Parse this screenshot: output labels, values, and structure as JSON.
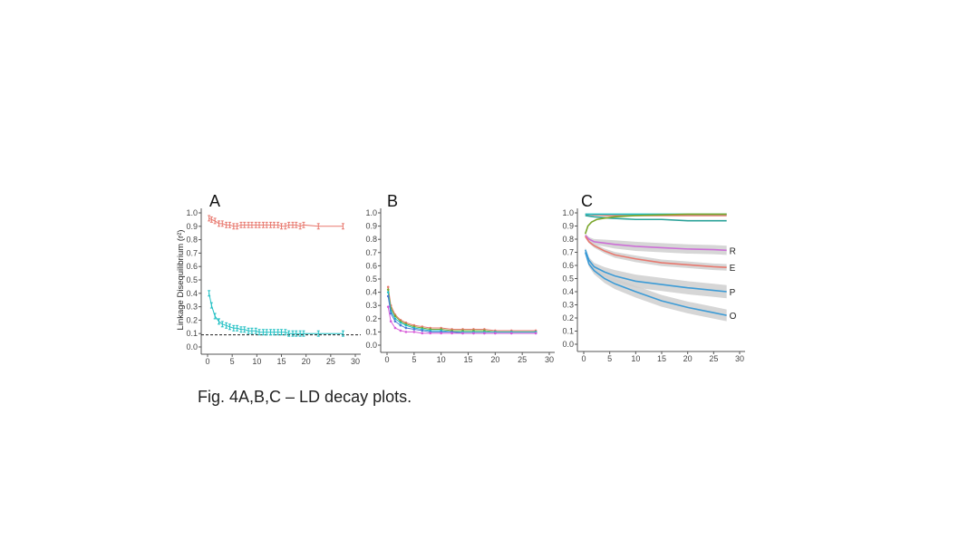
{
  "caption": "Fig. 4A,B,C – LD decay plots.",
  "chart_data": [
    {
      "panel": "A",
      "type": "line",
      "ylabel": "Linkage Disequilibrium (r²)",
      "xlim": [
        0,
        30
      ],
      "ylim": [
        0,
        1.0
      ],
      "xticks": [
        0,
        5,
        10,
        15,
        20,
        25,
        30
      ],
      "yticks": [
        0.0,
        0.1,
        0.2,
        0.3,
        0.4,
        0.5,
        0.6,
        0.7,
        0.8,
        0.9,
        1.0
      ],
      "reference_line": {
        "y": 0.09,
        "style": "dashed"
      },
      "error_bars": true,
      "series": [
        {
          "color": "#e8796f",
          "x": [
            0.3,
            0.8,
            1.5,
            2.3,
            3.0,
            3.8,
            4.5,
            5.3,
            6.0,
            6.8,
            7.5,
            8.3,
            9.0,
            9.8,
            10.5,
            11.3,
            12.0,
            12.8,
            13.5,
            14.3,
            15.0,
            15.8,
            16.5,
            17.3,
            18.0,
            18.8,
            19.5,
            22.5,
            27.5
          ],
          "y": [
            0.96,
            0.95,
            0.94,
            0.92,
            0.92,
            0.91,
            0.91,
            0.9,
            0.9,
            0.91,
            0.91,
            0.91,
            0.91,
            0.91,
            0.91,
            0.91,
            0.91,
            0.91,
            0.91,
            0.91,
            0.9,
            0.9,
            0.91,
            0.91,
            0.91,
            0.9,
            0.91,
            0.9,
            0.9
          ]
        },
        {
          "color": "#1fbfc3",
          "x": [
            0.3,
            0.8,
            1.5,
            2.3,
            3.0,
            3.8,
            4.5,
            5.3,
            6.0,
            6.8,
            7.5,
            8.3,
            9.0,
            9.8,
            10.5,
            11.3,
            12.0,
            12.8,
            13.5,
            14.3,
            15.0,
            15.8,
            16.5,
            17.3,
            18.0,
            18.8,
            19.5,
            22.5,
            27.5
          ],
          "y": [
            0.4,
            0.31,
            0.23,
            0.19,
            0.17,
            0.16,
            0.15,
            0.14,
            0.14,
            0.13,
            0.13,
            0.12,
            0.12,
            0.12,
            0.11,
            0.11,
            0.11,
            0.11,
            0.11,
            0.11,
            0.11,
            0.11,
            0.1,
            0.1,
            0.1,
            0.1,
            0.1,
            0.1,
            0.1
          ]
        }
      ]
    },
    {
      "panel": "B",
      "type": "line",
      "xlim": [
        0,
        30
      ],
      "ylim": [
        0,
        1.0
      ],
      "xticks": [
        0,
        5,
        10,
        15,
        20,
        25,
        30
      ],
      "yticks": [
        0.0,
        0.1,
        0.2,
        0.3,
        0.4,
        0.5,
        0.6,
        0.7,
        0.8,
        0.9,
        1.0
      ],
      "series": [
        {
          "color": "#e8796f",
          "x": [
            0.2,
            0.7,
            1.5,
            2.5,
            3.5,
            5.0,
            6.5,
            8.0,
            10.0,
            12.0,
            14.0,
            16.0,
            18.0,
            20.0,
            23.0,
            27.5
          ],
          "y": [
            0.44,
            0.3,
            0.23,
            0.19,
            0.17,
            0.15,
            0.14,
            0.13,
            0.13,
            0.12,
            0.12,
            0.12,
            0.12,
            0.11,
            0.11,
            0.11
          ]
        },
        {
          "color": "#7aa62c",
          "x": [
            0.2,
            0.7,
            1.5,
            2.5,
            3.5,
            5.0,
            6.5,
            8.0,
            10.0,
            12.0,
            14.0,
            16.0,
            18.0,
            20.0,
            23.0,
            27.5
          ],
          "y": [
            0.42,
            0.28,
            0.22,
            0.18,
            0.16,
            0.14,
            0.13,
            0.12,
            0.12,
            0.11,
            0.11,
            0.11,
            0.11,
            0.1,
            0.1,
            0.1
          ]
        },
        {
          "color": "#1fbfc3",
          "x": [
            0.2,
            0.7,
            1.5,
            2.5,
            3.5,
            5.0,
            6.5,
            8.0,
            10.0,
            12.0,
            14.0,
            16.0,
            18.0,
            20.0,
            23.0,
            27.5
          ],
          "y": [
            0.4,
            0.26,
            0.2,
            0.17,
            0.15,
            0.13,
            0.12,
            0.11,
            0.11,
            0.1,
            0.1,
            0.1,
            0.1,
            0.1,
            0.1,
            0.1
          ]
        },
        {
          "color": "#4a78d6",
          "x": [
            0.2,
            0.7,
            1.5,
            2.5,
            3.5,
            5.0,
            6.5,
            8.0,
            10.0,
            12.0,
            14.0,
            16.0,
            18.0,
            20.0,
            23.0,
            27.5
          ],
          "y": [
            0.37,
            0.24,
            0.18,
            0.15,
            0.13,
            0.12,
            0.11,
            0.1,
            0.1,
            0.1,
            0.09,
            0.09,
            0.09,
            0.09,
            0.09,
            0.09
          ]
        },
        {
          "color": "#d85ad8",
          "x": [
            0.2,
            0.7,
            1.5,
            2.5,
            3.5,
            5.0,
            6.5,
            8.0,
            10.0,
            12.0,
            14.0,
            16.0,
            18.0,
            20.0,
            23.0,
            27.5
          ],
          "y": [
            0.29,
            0.18,
            0.13,
            0.11,
            0.1,
            0.1,
            0.09,
            0.09,
            0.09,
            0.09,
            0.09,
            0.09,
            0.09,
            0.09,
            0.09,
            0.09
          ]
        }
      ]
    },
    {
      "panel": "C",
      "type": "line",
      "xlim": [
        0,
        30
      ],
      "ylim": [
        0,
        1.0
      ],
      "xticks": [
        0,
        5,
        10,
        15,
        20,
        25,
        30
      ],
      "yticks": [
        0.0,
        0.1,
        0.2,
        0.3,
        0.4,
        0.5,
        0.6,
        0.7,
        0.8,
        0.9,
        1.0
      ],
      "confidence_band": true,
      "series": [
        {
          "color": "#e8796f",
          "x": [
            0.3,
            2,
            5,
            10,
            15,
            20,
            25,
            27.5
          ],
          "y": [
            0.99,
            0.985,
            0.98,
            0.98,
            0.98,
            0.98,
            0.98,
            0.98
          ]
        },
        {
          "color": "#1fbfc3",
          "x": [
            0.3,
            2,
            5,
            10,
            15,
            20,
            25,
            27.5
          ],
          "y": [
            0.99,
            0.99,
            0.99,
            0.99,
            0.99,
            0.99,
            0.99,
            0.99
          ]
        },
        {
          "color": "#2aa198",
          "x": [
            0.3,
            2,
            5,
            10,
            15,
            20,
            25,
            27.5
          ],
          "y": [
            0.98,
            0.97,
            0.96,
            0.95,
            0.95,
            0.94,
            0.94,
            0.94
          ]
        },
        {
          "color": "#7aa62c",
          "x": [
            0.3,
            0.8,
            1.5,
            2.5,
            4,
            6,
            10,
            15,
            20,
            25,
            27.5
          ],
          "y": [
            0.84,
            0.9,
            0.93,
            0.95,
            0.96,
            0.97,
            0.98,
            0.985,
            0.99,
            0.99,
            0.99
          ]
        },
        {
          "label": "R",
          "color": "#cc6fd6",
          "band": 0.035,
          "x": [
            0.3,
            1,
            2,
            4,
            6,
            10,
            15,
            20,
            25,
            27.5
          ],
          "y": [
            0.83,
            0.8,
            0.78,
            0.77,
            0.76,
            0.745,
            0.735,
            0.725,
            0.72,
            0.715
          ]
        },
        {
          "label": "E",
          "color": "#e8796f",
          "band": 0.025,
          "x": [
            0.3,
            1,
            2,
            4,
            6,
            10,
            15,
            20,
            25,
            27.5
          ],
          "y": [
            0.82,
            0.78,
            0.75,
            0.71,
            0.68,
            0.65,
            0.62,
            0.605,
            0.59,
            0.585
          ]
        },
        {
          "label": "P",
          "color": "#3c9bd6",
          "band": 0.05,
          "x": [
            0.3,
            1,
            2,
            4,
            6,
            10,
            15,
            20,
            25,
            27.5
          ],
          "y": [
            0.72,
            0.64,
            0.59,
            0.55,
            0.52,
            0.48,
            0.455,
            0.43,
            0.41,
            0.4
          ]
        },
        {
          "label": "O",
          "color": "#3c9bd6",
          "band": 0.045,
          "x": [
            0.3,
            1,
            2,
            4,
            6,
            10,
            15,
            20,
            25,
            27.5
          ],
          "y": [
            0.7,
            0.61,
            0.56,
            0.5,
            0.46,
            0.4,
            0.33,
            0.28,
            0.24,
            0.22
          ]
        }
      ]
    }
  ]
}
